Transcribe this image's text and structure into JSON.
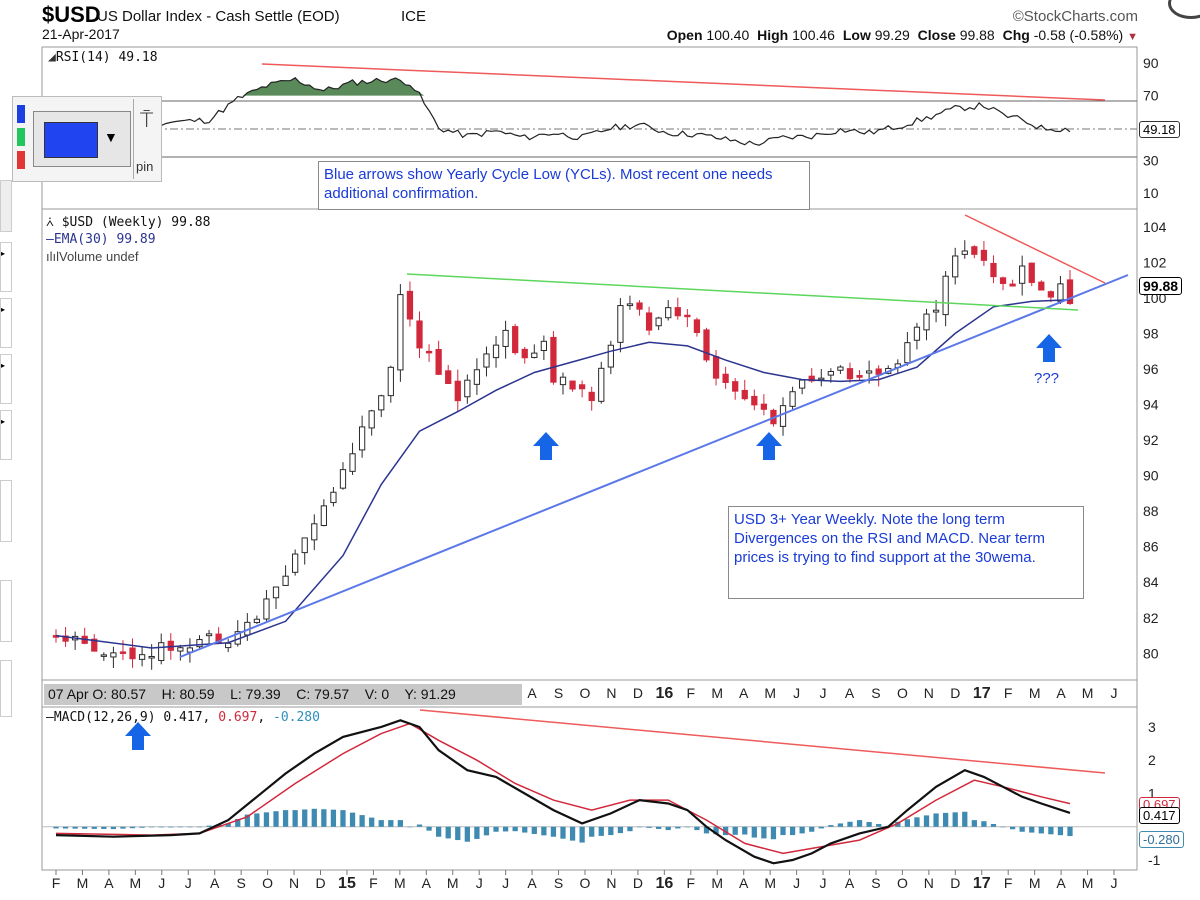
{
  "header": {
    "symbol": "$USD",
    "name": "US Dollar Index - Cash Settle (EOD)",
    "exchange": "ICE",
    "date": "21-Apr-2017",
    "brand": "©StockCharts.com",
    "ohlc": {
      "open_label": "Open",
      "open": "100.40",
      "high_label": "High",
      "high": "100.46",
      "low_label": "Low",
      "low": "99.29",
      "close_label": "Close",
      "close": "99.88",
      "chg_label": "Chg",
      "chg": "-0.58 (-0.58%)"
    }
  },
  "colors": {
    "up": "#2a2a2a",
    "down": "#d2283c",
    "ema": "#2b3590",
    "trend_support": "#5b78e8",
    "trend_green": "#5cd65c",
    "trend_red": "#ef5a5a",
    "annotation": "#1a3bd6",
    "arrow": "#1565e6",
    "rsi_fill": "#5a8a5a",
    "hist": "#3f8ab0"
  },
  "widget": {
    "pin_label": "pin"
  },
  "rsi_panel": {
    "label": "RSI(14) 49.18",
    "ticks": [
      "90",
      "70",
      "50",
      "30",
      "10"
    ],
    "current_tag": "49.18"
  },
  "price_panel": {
    "legend_price": "$USD (Weekly) 99.88",
    "legend_ema": "EMA(30) 99.89",
    "legend_volume": "Volume undef",
    "ticks": [
      "104",
      "102",
      "100",
      "98",
      "96",
      "94",
      "92",
      "90",
      "88",
      "86",
      "84",
      "82",
      "80"
    ],
    "current_tag": "99.88",
    "question_marks": "???"
  },
  "annotations": {
    "ycl_note": "Blue arrows show Yearly Cycle Low (YCLs). Most recent one needs additional confirmation.",
    "weekly_note": "USD 3+ Year Weekly. Note the long term Divergences on the RSI and MACD. Near term prices is trying to find support at the 30wema."
  },
  "status_bar": {
    "text": "07 Apr O: 80.57    H: 80.59    L: 79.39    C: 79.57    V: 0    Y: 91.29"
  },
  "month_axis": {
    "labels": [
      "F",
      "M",
      "A",
      "M",
      "J",
      "J",
      "A",
      "S",
      "O",
      "N",
      "D",
      "15",
      "F",
      "M",
      "A",
      "M",
      "J",
      "J",
      "A",
      "S",
      "O",
      "N",
      "D",
      "16",
      "F",
      "M",
      "A",
      "M",
      "J",
      "J",
      "A",
      "S",
      "O",
      "N",
      "D",
      "17",
      "F",
      "M",
      "A",
      "M",
      "J"
    ],
    "covered_top": 13
  },
  "macd_panel": {
    "label_prefix": "MACD(12,26,9)",
    "macd_value": "0.417",
    "signal_value": "0.697",
    "hist_value": "-0.280",
    "ticks": [
      "3",
      "2",
      "1",
      "-1"
    ],
    "tag_signal": "0.697",
    "tag_macd": "0.417",
    "tag_hist": "-0.280"
  },
  "chart_data": {
    "type": "candlestick",
    "title": "$USD US Dollar Index - Cash Settle (EOD) ICE",
    "x_range": [
      "2014-01",
      "2017-06"
    ],
    "price_ylim": [
      78.5,
      105
    ],
    "rsi_ylim": [
      0,
      100
    ],
    "macd_ylim": [
      -1.3,
      3.6
    ],
    "price_path": [
      [
        0,
        81.0
      ],
      [
        4,
        80.3
      ],
      [
        8,
        79.9
      ],
      [
        12,
        80.4
      ],
      [
        16,
        80.9
      ],
      [
        18,
        80.9
      ],
      [
        21,
        82.0
      ],
      [
        24,
        84.5
      ],
      [
        26,
        86.5
      ],
      [
        28,
        88.3
      ],
      [
        30,
        90.5
      ],
      [
        33,
        93.5
      ],
      [
        35,
        96.0
      ],
      [
        36,
        100.3
      ],
      [
        37,
        99.0
      ],
      [
        38,
        97.5
      ],
      [
        40,
        96.0
      ],
      [
        42,
        94.0
      ],
      [
        43,
        95.5
      ],
      [
        45,
        96.5
      ],
      [
        47,
        98.0
      ],
      [
        49,
        96.5
      ],
      [
        51,
        97.5
      ],
      [
        52,
        95.5
      ],
      [
        54,
        95.0
      ],
      [
        56,
        94.5
      ],
      [
        58,
        97.0
      ],
      [
        59,
        99.5
      ],
      [
        60,
        100.0
      ],
      [
        62,
        98.5
      ],
      [
        64,
        99.5
      ],
      [
        66,
        99.0
      ],
      [
        68,
        96.5
      ],
      [
        70,
        95.0
      ],
      [
        72,
        94.0
      ],
      [
        74,
        93.5
      ],
      [
        75,
        92.8
      ],
      [
        77,
        95.0
      ],
      [
        79,
        95.2
      ],
      [
        81,
        96.0
      ],
      [
        84,
        95.5
      ],
      [
        86,
        95.8
      ],
      [
        88,
        96.5
      ],
      [
        90,
        98.5
      ],
      [
        92,
        99.5
      ],
      [
        93,
        101.5
      ],
      [
        95,
        102.8
      ],
      [
        97,
        102.2
      ],
      [
        99,
        100.5
      ],
      [
        101,
        101.5
      ],
      [
        103,
        100.5
      ],
      [
        104,
        99.8
      ],
      [
        105,
        101.0
      ],
      [
        106,
        99.88
      ]
    ],
    "ema30_path": [
      [
        0,
        81.0
      ],
      [
        10,
        80.3
      ],
      [
        18,
        80.6
      ],
      [
        24,
        81.8
      ],
      [
        30,
        85.5
      ],
      [
        34,
        89.5
      ],
      [
        38,
        92.5
      ],
      [
        42,
        93.6
      ],
      [
        46,
        94.8
      ],
      [
        50,
        95.8
      ],
      [
        54,
        96.4
      ],
      [
        58,
        97.0
      ],
      [
        62,
        97.5
      ],
      [
        66,
        97.3
      ],
      [
        70,
        96.5
      ],
      [
        74,
        95.8
      ],
      [
        78,
        95.4
      ],
      [
        82,
        95.3
      ],
      [
        86,
        95.4
      ],
      [
        90,
        96.1
      ],
      [
        94,
        98.0
      ],
      [
        98,
        99.5
      ],
      [
        102,
        99.8
      ],
      [
        106,
        99.89
      ]
    ],
    "rsi_path": [
      [
        0,
        52
      ],
      [
        5,
        47
      ],
      [
        10,
        53
      ],
      [
        16,
        55
      ],
      [
        19,
        68
      ],
      [
        22,
        76
      ],
      [
        25,
        80
      ],
      [
        28,
        73
      ],
      [
        31,
        78
      ],
      [
        35,
        80
      ],
      [
        37,
        78
      ],
      [
        38,
        70
      ],
      [
        40,
        50
      ],
      [
        43,
        45
      ],
      [
        46,
        48
      ],
      [
        49,
        44
      ],
      [
        52,
        47
      ],
      [
        55,
        44
      ],
      [
        58,
        50
      ],
      [
        61,
        52
      ],
      [
        64,
        47
      ],
      [
        67,
        46
      ],
      [
        70,
        43
      ],
      [
        73,
        40
      ],
      [
        76,
        44
      ],
      [
        79,
        45
      ],
      [
        82,
        49
      ],
      [
        85,
        47
      ],
      [
        88,
        51
      ],
      [
        91,
        56
      ],
      [
        94,
        62
      ],
      [
        97,
        64
      ],
      [
        99,
        58
      ],
      [
        101,
        55
      ],
      [
        103,
        50
      ],
      [
        106,
        49.18
      ]
    ],
    "macd_line": [
      [
        0,
        -0.25
      ],
      [
        6,
        -0.3
      ],
      [
        12,
        -0.25
      ],
      [
        15,
        -0.2
      ],
      [
        18,
        0.2
      ],
      [
        21,
        0.9
      ],
      [
        24,
        1.6
      ],
      [
        27,
        2.2
      ],
      [
        30,
        2.7
      ],
      [
        34,
        3.0
      ],
      [
        36,
        3.2
      ],
      [
        38,
        3.0
      ],
      [
        40,
        2.3
      ],
      [
        43,
        1.7
      ],
      [
        46,
        1.5
      ],
      [
        49,
        1.0
      ],
      [
        52,
        0.5
      ],
      [
        55,
        0.1
      ],
      [
        58,
        0.4
      ],
      [
        61,
        0.8
      ],
      [
        64,
        0.7
      ],
      [
        66,
        0.5
      ],
      [
        68,
        0.0
      ],
      [
        70,
        -0.4
      ],
      [
        73,
        -0.9
      ],
      [
        75,
        -1.1
      ],
      [
        77,
        -1.0
      ],
      [
        79,
        -0.8
      ],
      [
        81,
        -0.5
      ],
      [
        84,
        -0.2
      ],
      [
        87,
        0.0
      ],
      [
        89,
        0.5
      ],
      [
        92,
        1.2
      ],
      [
        95,
        1.7
      ],
      [
        97,
        1.5
      ],
      [
        99,
        1.2
      ],
      [
        101,
        0.9
      ],
      [
        103,
        0.7
      ],
      [
        106,
        0.417
      ]
    ],
    "macd_signal": [
      [
        0,
        -0.2
      ],
      [
        10,
        -0.25
      ],
      [
        15,
        -0.2
      ],
      [
        20,
        0.3
      ],
      [
        25,
        1.3
      ],
      [
        30,
        2.2
      ],
      [
        34,
        2.8
      ],
      [
        37,
        3.1
      ],
      [
        40,
        2.6
      ],
      [
        44,
        2.0
      ],
      [
        48,
        1.3
      ],
      [
        52,
        0.8
      ],
      [
        56,
        0.5
      ],
      [
        60,
        0.8
      ],
      [
        64,
        0.8
      ],
      [
        68,
        0.2
      ],
      [
        72,
        -0.5
      ],
      [
        76,
        -0.8
      ],
      [
        80,
        -0.6
      ],
      [
        84,
        -0.4
      ],
      [
        88,
        0.1
      ],
      [
        92,
        0.8
      ],
      [
        96,
        1.4
      ],
      [
        99,
        1.2
      ],
      [
        103,
        0.9
      ],
      [
        106,
        0.697
      ]
    ],
    "annotations": [
      "Blue arrows show Yearly Cycle Low (YCLs). Most recent one needs additional confirmation.",
      "USD 3+ Year Weekly. Note the long term Divergences on the RSI and MACD. Near term prices is trying to find support at the 30wema."
    ]
  }
}
